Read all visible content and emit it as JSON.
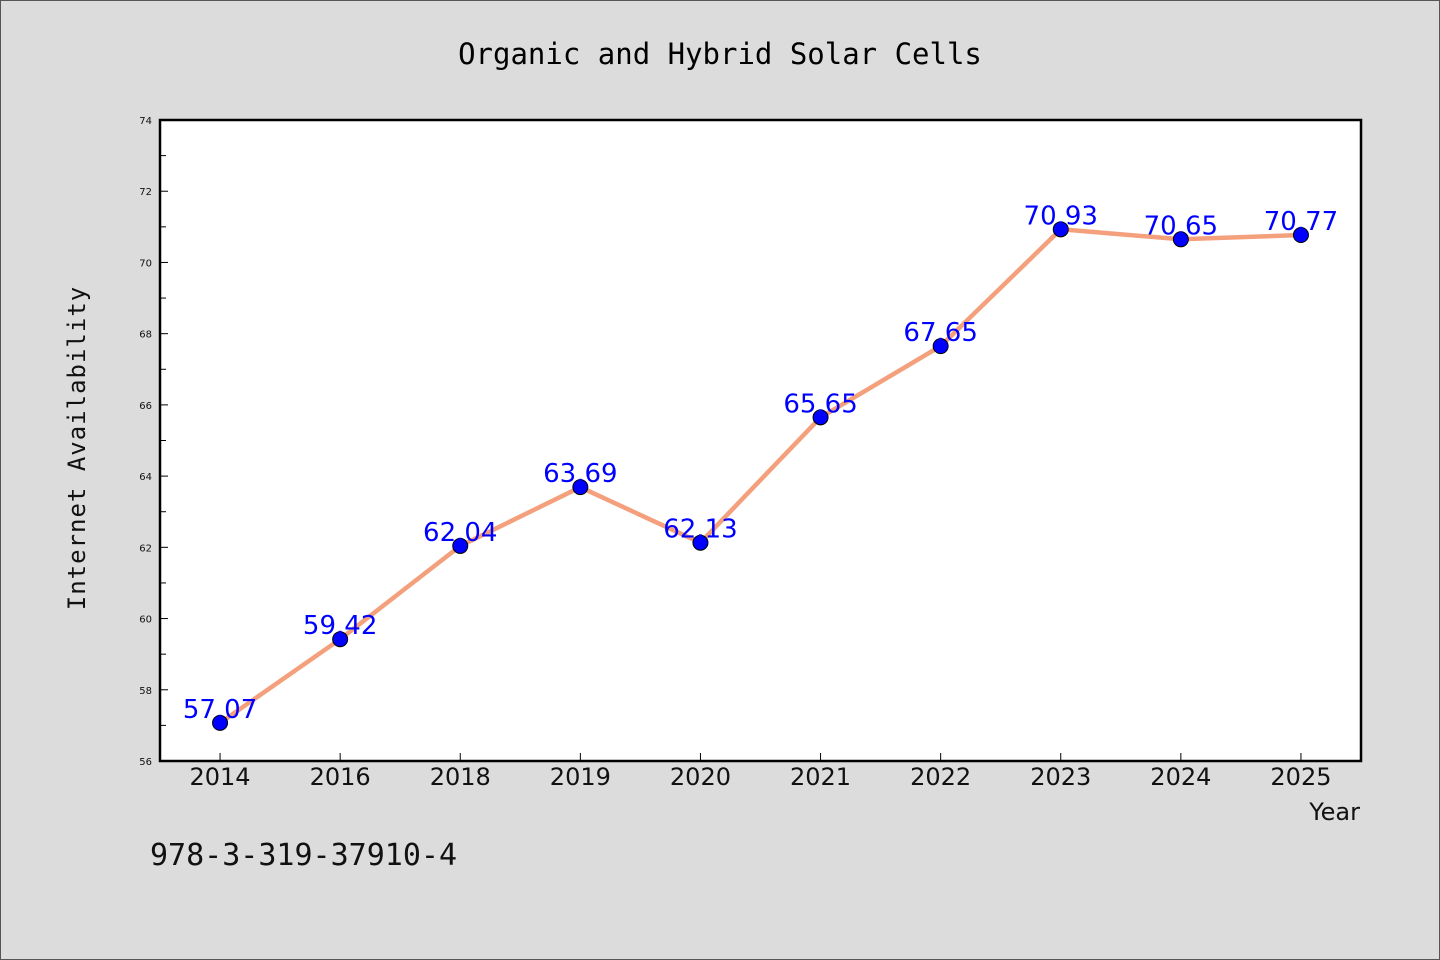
{
  "chart_data": {
    "type": "line",
    "title": "Organic and Hybrid Solar Cells",
    "xlabel": "Year",
    "ylabel": "Internet Availability",
    "categories": [
      "2014",
      "2016",
      "2018",
      "2019",
      "2020",
      "2021",
      "2022",
      "2023",
      "2024",
      "2025"
    ],
    "series": [
      {
        "values": [
          57.07,
          59.42,
          62.04,
          63.69,
          62.13,
          65.65,
          67.65,
          70.93,
          70.65,
          70.77
        ]
      }
    ],
    "data_labels": [
      "57.07",
      "59.42",
      "62.04",
      "63.69",
      "62.13",
      "65.65",
      "67.65",
      "70.93",
      "70.65",
      "70.77"
    ],
    "ylim": [
      56,
      74
    ],
    "yticks": [
      "56",
      "58",
      "60",
      "62",
      "64",
      "66",
      "68",
      "70",
      "72",
      "74"
    ],
    "grid": false,
    "colors": {
      "line": "#f4a07c",
      "marker": "#0000ff",
      "label": "#0000ff",
      "background": "#dcdcdc",
      "plot_area": "#ffffff"
    }
  },
  "footnote": "978-3-319-37910-4"
}
